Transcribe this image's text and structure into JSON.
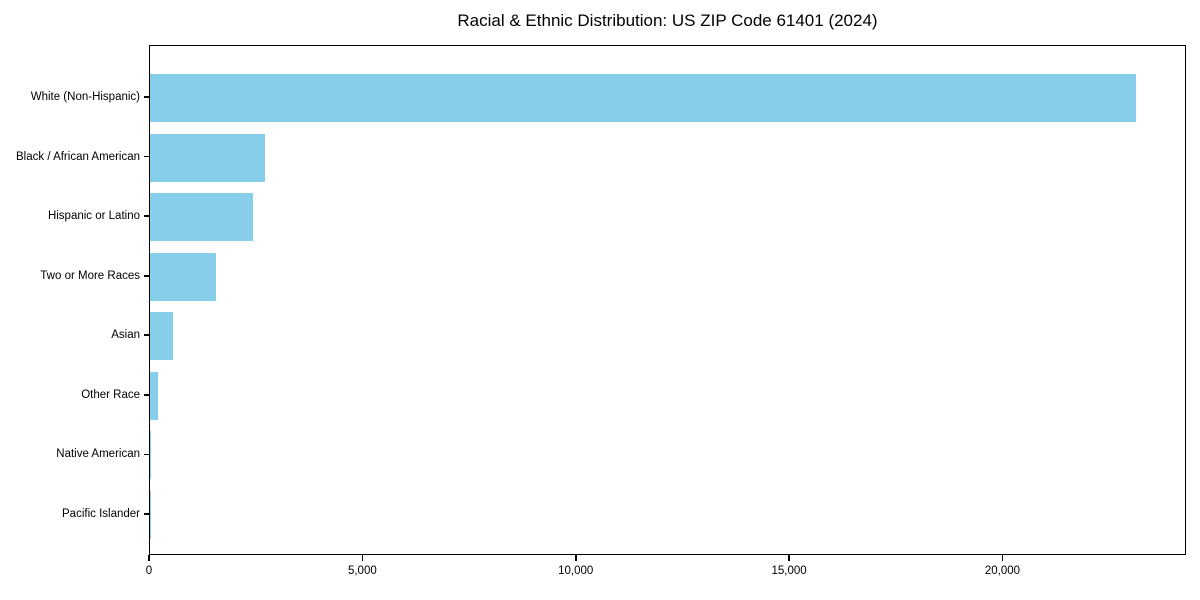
{
  "chart_data": {
    "type": "bar",
    "orientation": "horizontal",
    "title": "Racial & Ethnic Distribution: US ZIP Code 61401 (2024)",
    "categories": [
      "White (Non-Hispanic)",
      "Black / African American",
      "Hispanic or Latino",
      "Two or More Races",
      "Asian",
      "Other Race",
      "Native American",
      "Pacific Islander"
    ],
    "values": [
      23150,
      2710,
      2415,
      1550,
      540,
      185,
      20,
      8
    ],
    "xlabel": "",
    "ylabel": "",
    "xlim": [
      0,
      24300
    ],
    "xticks": [
      0,
      5000,
      10000,
      15000,
      20000
    ],
    "xtick_labels": [
      "0",
      "5,000",
      "10,000",
      "15,000",
      "20,000"
    ],
    "bar_color": "#87CEEB",
    "background_color": "#ffffff",
    "spine_color": "#000000",
    "grid": false,
    "legend": null
  }
}
